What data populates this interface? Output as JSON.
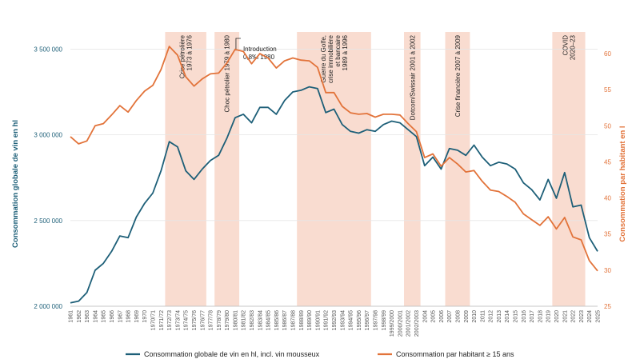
{
  "chart_data": {
    "type": "line",
    "ylabel_left": "Consommation globale de vin en hl",
    "ylabel_right": "Consommation par habitant en l",
    "ylim_left": [
      2000000,
      3600000
    ],
    "ylim_right": [
      25,
      63
    ],
    "yticks_left": [
      "2 000 000",
      "2 500 000",
      "3 000 000",
      "3 500 000"
    ],
    "yticks_right": [
      "25",
      "30",
      "35",
      "40",
      "45",
      "50",
      "55",
      "60"
    ],
    "x": [
      "1961",
      "1962",
      "1963",
      "1964",
      "1965",
      "1966",
      "1967",
      "1968",
      "1969",
      "1970",
      "1970/71",
      "1971/72",
      "1972/73",
      "1973/74",
      "1974/75",
      "1975/76",
      "1976/77",
      "1977/78",
      "1978/79",
      "1979/80",
      "1980/81",
      "1981/82",
      "1982/83",
      "1983/84",
      "1984/85",
      "1985/86",
      "1986/87",
      "1987/88",
      "1988/89",
      "1989/90",
      "1990/91",
      "1991/92",
      "1992/93",
      "1993/94",
      "1994/95",
      "1995/96",
      "1996/97",
      "1997/98",
      "1998/99",
      "1999/2000",
      "2000/2001",
      "2001/2002",
      "2002/2003",
      "2004",
      "2005",
      "2006",
      "2007",
      "2008",
      "2009",
      "2010",
      "2011",
      "2012",
      "2013",
      "2014",
      "2015",
      "2016",
      "2017",
      "2018",
      "2019",
      "2020",
      "2021",
      "2022",
      "2023",
      "2024",
      "2025"
    ],
    "series": [
      {
        "name": "Consommation globale de vin en hl, incl. vin mousseux",
        "axis": "left",
        "color": "#1d5f78",
        "values": [
          2020000,
          2030000,
          2080000,
          2210000,
          2250000,
          2320000,
          2410000,
          2400000,
          2520000,
          2600000,
          2660000,
          2790000,
          2960000,
          2930000,
          2790000,
          2740000,
          2800000,
          2850000,
          2880000,
          2980000,
          3100000,
          3120000,
          3070000,
          3160000,
          3160000,
          3120000,
          3200000,
          3250000,
          3260000,
          3280000,
          3270000,
          3130000,
          3150000,
          3060000,
          3020000,
          3010000,
          3030000,
          3020000,
          3060000,
          3080000,
          3070000,
          3030000,
          2990000,
          2820000,
          2870000,
          2800000,
          2920000,
          2910000,
          2880000,
          2940000,
          2870000,
          2820000,
          2840000,
          2830000,
          2800000,
          2720000,
          2680000,
          2620000,
          2740000,
          2630000,
          2780000,
          2580000,
          2590000,
          2400000,
          2320000
        ]
      },
      {
        "name": "Consommation par habitant ≥ 15 ans",
        "axis": "right",
        "color": "#e2733a",
        "values": [
          48.5,
          47.5,
          47.9,
          50,
          50.3,
          51.5,
          52.8,
          51.9,
          53.5,
          54.8,
          55.6,
          57.8,
          61,
          59.8,
          56.8,
          55.5,
          56.5,
          57.2,
          57.3,
          58.7,
          60.6,
          60.3,
          58.6,
          60,
          59.4,
          58,
          59,
          59.4,
          59.1,
          59,
          58.1,
          54.6,
          54.6,
          52.7,
          51.8,
          51.6,
          51.7,
          51.2,
          51.6,
          51.6,
          51.5,
          50.3,
          49.2,
          45.6,
          46.1,
          44.4,
          45.6,
          44.7,
          43.6,
          43.8,
          42.3,
          41.1,
          40.9,
          40.2,
          39.4,
          37.8,
          37,
          36.2,
          37.4,
          35.7,
          37.3,
          34.6,
          34.2,
          31.3,
          29.9
        ]
      }
    ],
    "bands": [
      {
        "from": "1972/73",
        "to": "1976/77",
        "label": "Crise pétrolière",
        "sublabel": "1973 à 1976"
      },
      {
        "from": "1978/79",
        "to": "1980/81",
        "label": "Choc pétrolier 1979 à 1980",
        "sublabel": ""
      },
      {
        "from": "1988/89",
        "to": "1996/97",
        "label": "Guerre du Golfe,",
        "sublabel": "crise immobilière",
        "sublabel2": "et bancaire",
        "sublabel3": "1989 à 1996"
      },
      {
        "from": "2001/2002",
        "to": "2002/2003",
        "label": "Dotcom/Swissair 2001 à 2002",
        "sublabel": ""
      },
      {
        "from": "2007",
        "to": "2009",
        "label": "Crise financière 2007 à 2009",
        "sublabel": ""
      },
      {
        "from": "2020",
        "to": "2023",
        "label": "COVID",
        "sublabel": "2020–23"
      }
    ],
    "annotation": {
      "line1": "Introduction",
      "line2": "0,8‰ 1980",
      "at": "1980/81"
    },
    "legend": [
      "Consommation globale de vin en hl, incl. vin mousseux",
      "Consommation par habitant ≥ 15 ans"
    ],
    "legend_placement": "bottom",
    "grid": true
  },
  "colors": {
    "left_series": "#1d5f78",
    "right_series": "#e2733a",
    "band": "#f9dcd0",
    "grid": "#e6e6e6"
  }
}
